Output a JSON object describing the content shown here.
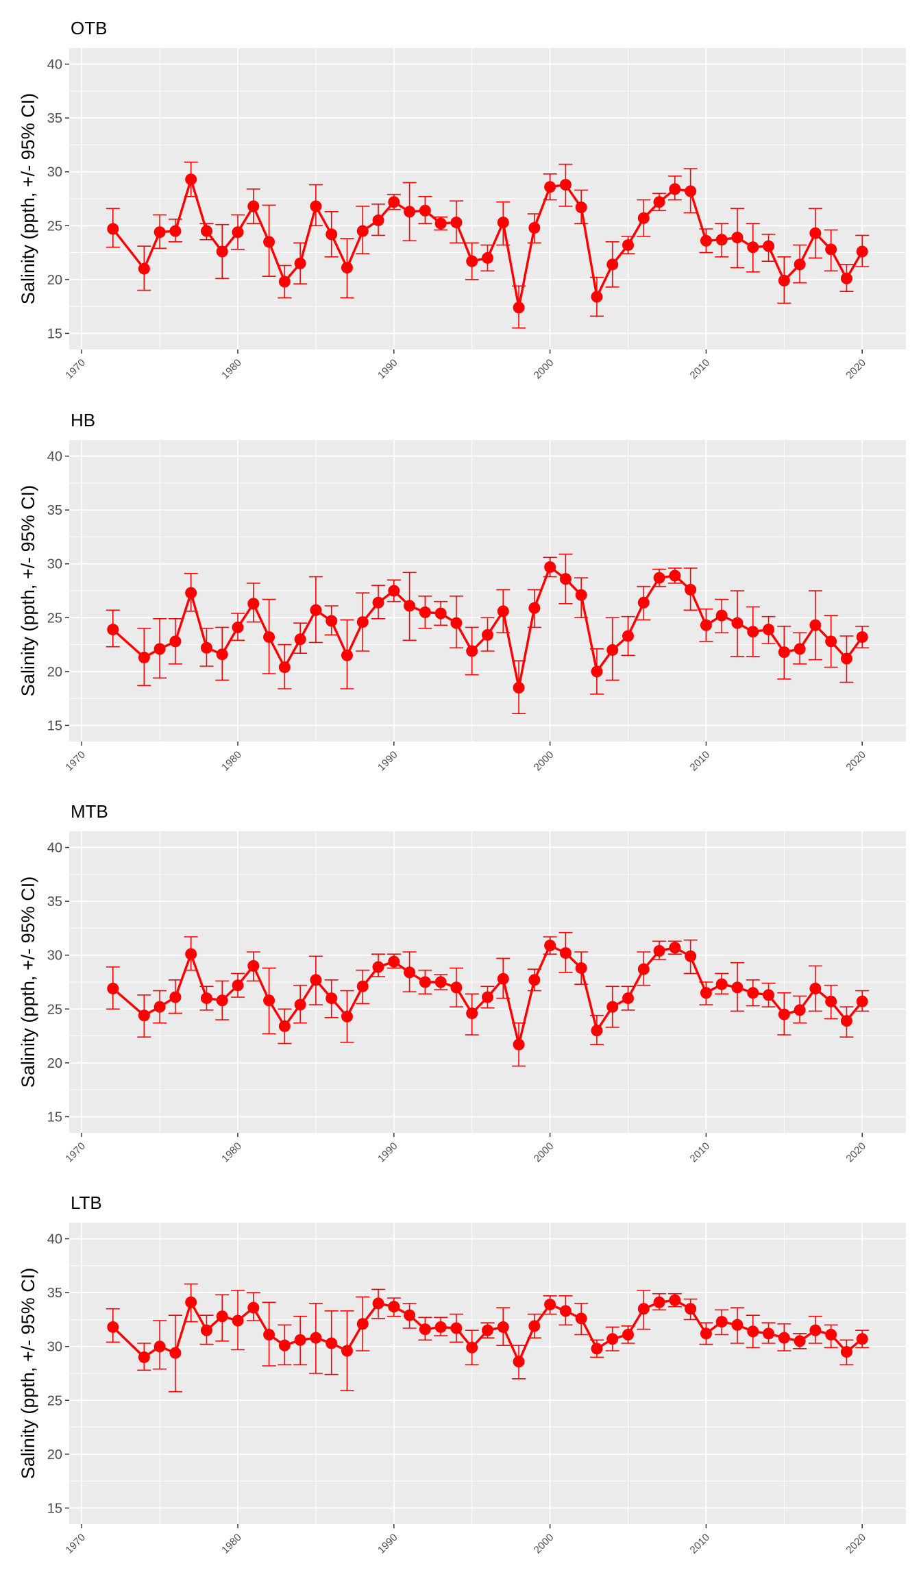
{
  "chart_data": [
    {
      "type": "line",
      "title": "OTB",
      "ylabel": "Salinity (ppth, +/- 95% CI)",
      "ylim": [
        13.5,
        41.5
      ],
      "xlim": [
        1969.2,
        2022.8
      ],
      "yticks": [
        15,
        20,
        25,
        30,
        35,
        40
      ],
      "xticks": [
        1970,
        1980,
        1990,
        2000,
        2010,
        2020
      ],
      "series": [
        {
          "x": [
            1972,
            1974,
            1975,
            1976,
            1977,
            1978,
            1979,
            1980,
            1981,
            1982,
            1983,
            1984,
            1985,
            1986,
            1987,
            1988,
            1989,
            1990,
            1991,
            1992,
            1993,
            1994,
            1995,
            1996,
            1997,
            1998,
            1999,
            2000,
            2001,
            2002,
            2003,
            2004,
            2005,
            2006,
            2007,
            2008,
            2009,
            2010,
            2011,
            2012,
            2013,
            2014,
            2015,
            2016,
            2017,
            2018,
            2019,
            2020
          ],
          "y": [
            24.7,
            21.0,
            24.4,
            24.5,
            29.3,
            24.5,
            22.6,
            24.4,
            26.8,
            23.5,
            19.8,
            21.5,
            26.8,
            24.2,
            21.1,
            24.5,
            25.5,
            27.2,
            26.3,
            26.4,
            25.2,
            25.3,
            21.7,
            22.0,
            25.3,
            17.4,
            24.8,
            28.6,
            28.8,
            26.7,
            18.4,
            21.4,
            23.2,
            25.7,
            27.2,
            28.4,
            28.2,
            23.6,
            23.7,
            23.9,
            23.0,
            23.1,
            19.9,
            21.4,
            24.3,
            22.8,
            20.1,
            22.6
          ],
          "lower": [
            23.0,
            19.0,
            22.9,
            23.5,
            27.7,
            23.7,
            20.1,
            22.8,
            25.2,
            20.3,
            18.3,
            19.6,
            25.0,
            22.1,
            18.3,
            22.4,
            24.1,
            26.5,
            23.6,
            25.2,
            24.6,
            23.4,
            20.0,
            20.8,
            23.2,
            15.5,
            23.4,
            27.4,
            26.8,
            25.2,
            16.6,
            19.3,
            22.4,
            24.0,
            26.4,
            27.4,
            26.2,
            22.5,
            22.1,
            21.1,
            20.7,
            21.7,
            17.8,
            19.7,
            22.0,
            20.8,
            18.9,
            21.2
          ],
          "upper": [
            26.6,
            23.1,
            26.0,
            25.6,
            30.9,
            25.2,
            25.1,
            26.0,
            28.4,
            26.9,
            21.3,
            23.4,
            28.8,
            26.3,
            23.8,
            26.8,
            27.0,
            27.9,
            29.0,
            27.7,
            25.8,
            27.3,
            23.4,
            23.2,
            27.2,
            19.4,
            26.1,
            29.8,
            30.7,
            28.3,
            20.2,
            23.5,
            24.0,
            27.4,
            28.0,
            29.6,
            30.3,
            24.7,
            25.2,
            26.6,
            25.2,
            24.2,
            22.1,
            23.2,
            26.6,
            24.6,
            21.4,
            24.1
          ]
        }
      ]
    },
    {
      "type": "line",
      "title": "HB",
      "ylabel": "Salinity (ppth, +/- 95% CI)",
      "ylim": [
        13.5,
        41.5
      ],
      "xlim": [
        1969.2,
        2022.8
      ],
      "yticks": [
        15,
        20,
        25,
        30,
        35,
        40
      ],
      "xticks": [
        1970,
        1980,
        1990,
        2000,
        2010,
        2020
      ],
      "series": [
        {
          "x": [
            1972,
            1974,
            1975,
            1976,
            1977,
            1978,
            1979,
            1980,
            1981,
            1982,
            1983,
            1984,
            1985,
            1986,
            1987,
            1988,
            1989,
            1990,
            1991,
            1992,
            1993,
            1994,
            1995,
            1996,
            1997,
            1998,
            1999,
            2000,
            2001,
            2002,
            2003,
            2004,
            2005,
            2006,
            2007,
            2008,
            2009,
            2010,
            2011,
            2012,
            2013,
            2014,
            2015,
            2016,
            2017,
            2018,
            2019,
            2020
          ],
          "y": [
            23.9,
            21.3,
            22.1,
            22.8,
            27.3,
            22.2,
            21.6,
            24.1,
            26.3,
            23.2,
            20.4,
            23.0,
            25.7,
            24.7,
            21.5,
            24.6,
            26.4,
            27.5,
            26.1,
            25.5,
            25.4,
            24.5,
            21.9,
            23.4,
            25.6,
            18.5,
            25.9,
            29.7,
            28.6,
            27.1,
            20.0,
            22.0,
            23.3,
            26.4,
            28.7,
            28.9,
            27.6,
            24.3,
            25.2,
            24.5,
            23.7,
            23.9,
            21.8,
            22.1,
            24.3,
            22.8,
            21.2,
            23.2
          ],
          "lower": [
            22.3,
            18.7,
            19.4,
            20.7,
            25.6,
            20.5,
            19.2,
            22.9,
            24.6,
            19.8,
            18.4,
            21.7,
            22.7,
            23.4,
            18.4,
            21.9,
            24.9,
            26.5,
            22.9,
            24.0,
            24.3,
            22.2,
            19.7,
            21.9,
            23.6,
            16.1,
            24.1,
            28.8,
            26.3,
            25.0,
            17.9,
            19.2,
            21.5,
            24.8,
            27.9,
            28.2,
            25.7,
            22.8,
            23.6,
            21.4,
            21.4,
            22.6,
            19.3,
            20.7,
            21.1,
            20.4,
            19.0,
            22.2
          ],
          "upper": [
            25.7,
            24.0,
            24.9,
            24.9,
            29.1,
            24.0,
            24.1,
            25.4,
            28.2,
            26.7,
            22.5,
            24.5,
            28.8,
            26.1,
            24.8,
            27.3,
            28.0,
            28.5,
            29.2,
            27.0,
            26.5,
            27.0,
            24.1,
            25.0,
            27.6,
            21.0,
            27.6,
            30.6,
            30.9,
            28.7,
            22.1,
            25.0,
            25.1,
            27.9,
            29.5,
            29.6,
            29.6,
            25.8,
            26.7,
            27.5,
            26.0,
            25.1,
            24.2,
            23.6,
            27.5,
            25.2,
            23.3,
            24.2
          ]
        }
      ]
    },
    {
      "type": "line",
      "title": "MTB",
      "ylabel": "Salinity (ppth, +/- 95% CI)",
      "ylim": [
        13.5,
        41.5
      ],
      "xlim": [
        1969.2,
        2022.8
      ],
      "yticks": [
        15,
        20,
        25,
        30,
        35,
        40
      ],
      "xticks": [
        1970,
        1980,
        1990,
        2000,
        2010,
        2020
      ],
      "series": [
        {
          "x": [
            1972,
            1974,
            1975,
            1976,
            1977,
            1978,
            1979,
            1980,
            1981,
            1982,
            1983,
            1984,
            1985,
            1986,
            1987,
            1988,
            1989,
            1990,
            1991,
            1992,
            1993,
            1994,
            1995,
            1996,
            1997,
            1998,
            1999,
            2000,
            2001,
            2002,
            2003,
            2004,
            2005,
            2006,
            2007,
            2008,
            2009,
            2010,
            2011,
            2012,
            2013,
            2014,
            2015,
            2016,
            2017,
            2018,
            2019,
            2020
          ],
          "y": [
            26.9,
            24.4,
            25.2,
            26.1,
            30.1,
            26.0,
            25.8,
            27.2,
            29.0,
            25.8,
            23.4,
            25.4,
            27.7,
            26.0,
            24.3,
            27.1,
            28.9,
            29.4,
            28.4,
            27.5,
            27.5,
            27.0,
            24.6,
            26.1,
            27.8,
            21.7,
            27.7,
            30.9,
            30.2,
            28.8,
            23.0,
            25.2,
            26.0,
            28.7,
            30.4,
            30.7,
            29.9,
            26.5,
            27.3,
            27.0,
            26.5,
            26.3,
            24.5,
            24.9,
            26.9,
            25.7,
            23.9,
            25.7
          ],
          "lower": [
            25.0,
            22.4,
            23.7,
            24.6,
            28.6,
            24.9,
            24.0,
            26.1,
            27.6,
            22.7,
            21.8,
            23.7,
            25.4,
            24.2,
            21.9,
            25.5,
            28.0,
            28.8,
            26.6,
            26.4,
            26.8,
            25.2,
            22.6,
            25.1,
            26.0,
            19.7,
            26.7,
            30.1,
            28.4,
            27.3,
            21.7,
            23.3,
            24.9,
            27.2,
            29.6,
            30.1,
            28.3,
            25.4,
            26.4,
            24.8,
            25.3,
            25.2,
            22.6,
            23.7,
            24.8,
            24.1,
            22.4,
            24.8
          ],
          "upper": [
            28.9,
            26.3,
            26.7,
            27.7,
            31.7,
            27.1,
            27.6,
            28.3,
            30.3,
            28.8,
            25.0,
            27.2,
            29.9,
            27.7,
            26.7,
            28.6,
            30.1,
            30.1,
            30.3,
            28.6,
            28.2,
            28.8,
            26.4,
            27.1,
            29.7,
            23.7,
            28.7,
            31.7,
            32.1,
            30.3,
            24.4,
            27.1,
            27.1,
            30.3,
            31.3,
            31.3,
            31.4,
            27.5,
            28.3,
            29.3,
            27.7,
            27.4,
            26.5,
            26.2,
            29.0,
            27.2,
            25.2,
            26.7
          ]
        }
      ]
    },
    {
      "type": "line",
      "title": "LTB",
      "ylabel": "Salinity (ppth, +/- 95% CI)",
      "ylim": [
        13.5,
        41.5
      ],
      "xlim": [
        1969.2,
        2022.8
      ],
      "yticks": [
        15,
        20,
        25,
        30,
        35,
        40
      ],
      "xticks": [
        1970,
        1980,
        1990,
        2000,
        2010,
        2020
      ],
      "series": [
        {
          "x": [
            1972,
            1974,
            1975,
            1976,
            1977,
            1978,
            1979,
            1980,
            1981,
            1982,
            1983,
            1984,
            1985,
            1986,
            1987,
            1988,
            1989,
            1990,
            1991,
            1992,
            1993,
            1994,
            1995,
            1996,
            1997,
            1998,
            1999,
            2000,
            2001,
            2002,
            2003,
            2004,
            2005,
            2006,
            2007,
            2008,
            2009,
            2010,
            2011,
            2012,
            2013,
            2014,
            2015,
            2016,
            2017,
            2018,
            2019,
            2020
          ],
          "y": [
            31.8,
            29.0,
            30.0,
            29.4,
            34.1,
            31.5,
            32.8,
            32.4,
            33.6,
            31.1,
            30.1,
            30.6,
            30.8,
            30.3,
            29.6,
            32.1,
            34.0,
            33.7,
            32.9,
            31.6,
            31.8,
            31.7,
            29.9,
            31.5,
            31.8,
            28.6,
            31.9,
            33.9,
            33.3,
            32.6,
            29.8,
            30.7,
            31.1,
            33.5,
            34.1,
            34.3,
            33.5,
            31.2,
            32.3,
            32.0,
            31.4,
            31.2,
            30.8,
            30.5,
            31.5,
            31.1,
            29.5,
            30.7
          ],
          "lower": [
            30.4,
            27.8,
            27.9,
            25.8,
            32.3,
            30.2,
            30.5,
            29.7,
            32.4,
            28.2,
            28.3,
            28.3,
            27.5,
            27.4,
            25.9,
            29.6,
            32.6,
            32.8,
            31.7,
            30.6,
            31.0,
            30.4,
            28.3,
            30.8,
            30.1,
            27.0,
            30.8,
            33.0,
            32.0,
            31.1,
            29.0,
            29.6,
            30.3,
            31.6,
            33.4,
            33.7,
            32.5,
            30.2,
            31.1,
            30.3,
            29.9,
            30.3,
            29.6,
            29.8,
            30.3,
            29.9,
            28.3,
            29.9
          ],
          "upper": [
            33.5,
            30.3,
            32.4,
            32.9,
            35.8,
            32.9,
            34.8,
            35.2,
            35.0,
            34.1,
            32.0,
            32.8,
            34.0,
            33.3,
            33.3,
            34.6,
            35.3,
            34.5,
            34.0,
            32.7,
            32.7,
            33.0,
            31.5,
            32.2,
            33.6,
            30.1,
            33.0,
            34.7,
            34.7,
            34.0,
            30.6,
            31.8,
            31.9,
            35.2,
            34.9,
            34.9,
            34.4,
            32.2,
            33.4,
            33.6,
            32.9,
            32.2,
            32.1,
            31.2,
            32.8,
            32.0,
            30.6,
            31.5
          ]
        }
      ]
    }
  ],
  "colors": {
    "series": "#ff0000",
    "panel_bg": "#ebebeb",
    "grid": "#ffffff",
    "tick_text": "#4d4d4d"
  }
}
